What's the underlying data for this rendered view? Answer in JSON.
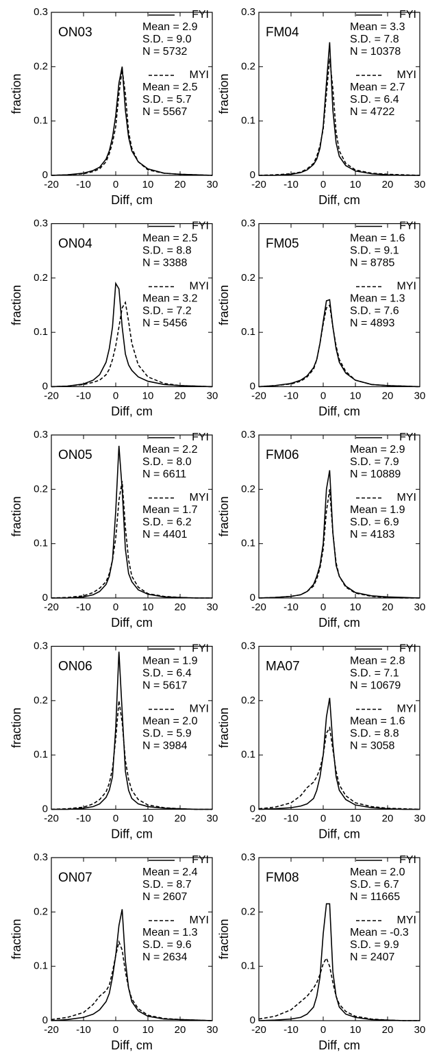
{
  "chart_data": [
    {
      "type": "line",
      "title": "ON03",
      "xlabel": "Diff, cm",
      "ylabel": "fraction",
      "x": [
        -20,
        -15,
        -10,
        -7,
        -5,
        -3,
        -2,
        -1,
        0,
        1,
        2,
        3,
        4,
        5,
        7,
        10,
        15,
        20,
        25,
        30
      ],
      "xlim": [
        -20,
        30
      ],
      "xticks": [
        -20,
        -10,
        0,
        10,
        20,
        30
      ],
      "ylim": [
        0,
        0.3
      ],
      "yticks": [
        0,
        0.1,
        0.2,
        0.3
      ],
      "series": [
        {
          "name": "FYI",
          "color": "#000000",
          "line_style": "solid",
          "stats": [
            "Mean = 2.9",
            "S.D. = 9.0",
            "N = 5732"
          ],
          "values": [
            0,
            0.001,
            0.004,
            0.009,
            0.015,
            0.03,
            0.045,
            0.07,
            0.11,
            0.17,
            0.2,
            0.12,
            0.07,
            0.045,
            0.025,
            0.012,
            0.004,
            0.002,
            0.001,
            0
          ]
        },
        {
          "name": "MYI",
          "color": "#000000",
          "line_style": "dashed",
          "stats": [
            "Mean = 2.5",
            "S.D. = 5.7",
            "N = 5567"
          ],
          "values": [
            0,
            0.001,
            0.003,
            0.007,
            0.012,
            0.025,
            0.04,
            0.06,
            0.09,
            0.15,
            0.195,
            0.15,
            0.08,
            0.05,
            0.025,
            0.01,
            0.004,
            0.002,
            0.001,
            0
          ]
        }
      ]
    },
    {
      "type": "line",
      "title": "FM04",
      "xlabel": "Diff, cm",
      "ylabel": "fraction",
      "x": [
        -20,
        -15,
        -10,
        -7,
        -5,
        -3,
        -2,
        -1,
        0,
        1,
        2,
        3,
        4,
        5,
        7,
        10,
        15,
        20,
        25,
        30
      ],
      "xlim": [
        -20,
        30
      ],
      "xticks": [
        -20,
        -10,
        0,
        10,
        20,
        30
      ],
      "ylim": [
        0,
        0.3
      ],
      "yticks": [
        0,
        0.1,
        0.2,
        0.3
      ],
      "series": [
        {
          "name": "FYI",
          "color": "#000000",
          "line_style": "solid",
          "stats": [
            "Mean = 3.3",
            "S.D. = 7.8",
            "N = 10378"
          ],
          "values": [
            0,
            0,
            0.002,
            0.005,
            0.01,
            0.02,
            0.03,
            0.05,
            0.09,
            0.17,
            0.245,
            0.12,
            0.06,
            0.035,
            0.018,
            0.008,
            0.003,
            0.001,
            0,
            0
          ]
        },
        {
          "name": "MYI",
          "color": "#000000",
          "line_style": "dashed",
          "stats": [
            "Mean = 2.7",
            "S.D. = 6.4",
            "N = 4722"
          ],
          "values": [
            0,
            0.001,
            0.003,
            0.006,
            0.012,
            0.022,
            0.035,
            0.055,
            0.085,
            0.15,
            0.215,
            0.16,
            0.08,
            0.045,
            0.022,
            0.01,
            0.004,
            0.002,
            0.001,
            0
          ]
        }
      ]
    },
    {
      "type": "line",
      "title": "ON04",
      "xlabel": "Diff, cm",
      "ylabel": "fraction",
      "x": [
        -20,
        -15,
        -10,
        -7,
        -5,
        -3,
        -2,
        -1,
        0,
        1,
        2,
        3,
        4,
        5,
        7,
        10,
        15,
        20,
        25,
        30
      ],
      "xlim": [
        -20,
        30
      ],
      "xticks": [
        -20,
        -10,
        0,
        10,
        20,
        30
      ],
      "ylim": [
        0,
        0.3
      ],
      "yticks": [
        0,
        0.1,
        0.2,
        0.3
      ],
      "series": [
        {
          "name": "FYI",
          "color": "#000000",
          "line_style": "solid",
          "stats": [
            "Mean = 2.5",
            "S.D. = 8.8",
            "N = 3388"
          ],
          "values": [
            0,
            0.001,
            0.005,
            0.012,
            0.022,
            0.045,
            0.07,
            0.11,
            0.19,
            0.18,
            0.11,
            0.06,
            0.04,
            0.03,
            0.018,
            0.01,
            0.004,
            0.002,
            0.001,
            0
          ]
        },
        {
          "name": "MYI",
          "color": "#000000",
          "line_style": "dashed",
          "stats": [
            "Mean = 3.2",
            "S.D. = 7.2",
            "N = 5456"
          ],
          "values": [
            0,
            0.001,
            0.004,
            0.008,
            0.012,
            0.022,
            0.032,
            0.05,
            0.075,
            0.11,
            0.145,
            0.155,
            0.12,
            0.08,
            0.04,
            0.018,
            0.006,
            0.002,
            0.001,
            0
          ]
        }
      ]
    },
    {
      "type": "line",
      "title": "FM05",
      "xlabel": "Diff, cm",
      "ylabel": "fraction",
      "x": [
        -20,
        -15,
        -10,
        -7,
        -5,
        -3,
        -2,
        -1,
        0,
        1,
        2,
        3,
        4,
        5,
        7,
        10,
        15,
        20,
        25,
        30
      ],
      "xlim": [
        -20,
        30
      ],
      "xticks": [
        -20,
        -10,
        0,
        10,
        20,
        30
      ],
      "ylim": [
        0,
        0.3
      ],
      "yticks": [
        0,
        0.1,
        0.2,
        0.3
      ],
      "series": [
        {
          "name": "FYI",
          "color": "#000000",
          "line_style": "solid",
          "stats": [
            "Mean = 1.6",
            "S.D. = 9.1",
            "N = 8785"
          ],
          "values": [
            0,
            0.002,
            0.006,
            0.012,
            0.02,
            0.035,
            0.05,
            0.08,
            0.12,
            0.158,
            0.16,
            0.11,
            0.07,
            0.045,
            0.025,
            0.012,
            0.004,
            0.002,
            0.001,
            0
          ]
        },
        {
          "name": "MYI",
          "color": "#000000",
          "line_style": "dashed",
          "stats": [
            "Mean = 1.3",
            "S.D. = 7.6",
            "N = 4893"
          ],
          "values": [
            0,
            0.002,
            0.005,
            0.01,
            0.018,
            0.032,
            0.05,
            0.08,
            0.115,
            0.145,
            0.15,
            0.11,
            0.075,
            0.05,
            0.028,
            0.012,
            0.004,
            0.002,
            0.001,
            0
          ]
        }
      ]
    },
    {
      "type": "line",
      "title": "ON05",
      "xlabel": "Diff, cm",
      "ylabel": "fraction",
      "x": [
        -20,
        -15,
        -10,
        -7,
        -5,
        -3,
        -2,
        -1,
        0,
        1,
        2,
        3,
        4,
        5,
        7,
        10,
        15,
        20,
        25,
        30
      ],
      "xlim": [
        -20,
        30
      ],
      "xticks": [
        -20,
        -10,
        0,
        10,
        20,
        30
      ],
      "ylim": [
        0,
        0.3
      ],
      "yticks": [
        0,
        0.1,
        0.2,
        0.3
      ],
      "series": [
        {
          "name": "FYI",
          "color": "#000000",
          "line_style": "solid",
          "stats": [
            "Mean = 2.2",
            "S.D. = 8.0",
            "N = 6611"
          ],
          "values": [
            0,
            0,
            0.002,
            0.006,
            0.012,
            0.025,
            0.04,
            0.07,
            0.16,
            0.28,
            0.2,
            0.09,
            0.045,
            0.03,
            0.015,
            0.007,
            0.002,
            0.001,
            0,
            0
          ]
        },
        {
          "name": "MYI",
          "color": "#000000",
          "line_style": "dashed",
          "stats": [
            "Mean = 1.7",
            "S.D. = 6.2",
            "N = 4401"
          ],
          "values": [
            0,
            0.001,
            0.004,
            0.01,
            0.018,
            0.03,
            0.045,
            0.07,
            0.11,
            0.18,
            0.215,
            0.13,
            0.07,
            0.04,
            0.02,
            0.008,
            0.003,
            0.001,
            0,
            0
          ]
        }
      ]
    },
    {
      "type": "line",
      "title": "FM06",
      "xlabel": "Diff, cm",
      "ylabel": "fraction",
      "x": [
        -20,
        -15,
        -10,
        -7,
        -5,
        -3,
        -2,
        -1,
        0,
        1,
        2,
        3,
        4,
        5,
        7,
        10,
        15,
        20,
        25,
        30
      ],
      "xlim": [
        -20,
        30
      ],
      "xticks": [
        -20,
        -10,
        0,
        10,
        20,
        30
      ],
      "ylim": [
        0,
        0.3
      ],
      "yticks": [
        0,
        0.1,
        0.2,
        0.3
      ],
      "series": [
        {
          "name": "FYI",
          "color": "#000000",
          "line_style": "solid",
          "stats": [
            "Mean = 2.9",
            "S.D. = 7.9",
            "N = 10889"
          ],
          "values": [
            0,
            0.001,
            0.003,
            0.006,
            0.012,
            0.025,
            0.04,
            0.06,
            0.1,
            0.2,
            0.235,
            0.12,
            0.06,
            0.04,
            0.022,
            0.01,
            0.004,
            0.002,
            0.001,
            0
          ]
        },
        {
          "name": "MYI",
          "color": "#000000",
          "line_style": "dashed",
          "stats": [
            "Mean = 1.9",
            "S.D. = 6.9",
            "N = 4183"
          ],
          "values": [
            0,
            0.001,
            0.003,
            0.006,
            0.012,
            0.022,
            0.035,
            0.055,
            0.09,
            0.16,
            0.2,
            0.12,
            0.065,
            0.04,
            0.02,
            0.009,
            0.003,
            0.001,
            0,
            0
          ]
        }
      ]
    },
    {
      "type": "line",
      "title": "ON06",
      "xlabel": "Diff, cm",
      "ylabel": "fraction",
      "x": [
        -20,
        -15,
        -10,
        -7,
        -5,
        -3,
        -2,
        -1,
        0,
        1,
        2,
        3,
        4,
        5,
        7,
        10,
        15,
        20,
        25,
        30
      ],
      "xlim": [
        -20,
        30
      ],
      "xticks": [
        -20,
        -10,
        0,
        10,
        20,
        30
      ],
      "ylim": [
        0,
        0.3
      ],
      "yticks": [
        0,
        0.1,
        0.2,
        0.3
      ],
      "series": [
        {
          "name": "FYI",
          "color": "#000000",
          "line_style": "solid",
          "stats": [
            "Mean = 1.9",
            "S.D. = 6.4",
            "N = 5617"
          ],
          "values": [
            0,
            0,
            0.002,
            0.005,
            0.01,
            0.022,
            0.035,
            0.06,
            0.15,
            0.29,
            0.18,
            0.07,
            0.035,
            0.02,
            0.01,
            0.005,
            0.002,
            0.001,
            0,
            0
          ]
        },
        {
          "name": "MYI",
          "color": "#000000",
          "line_style": "dashed",
          "stats": [
            "Mean = 2.0",
            "S.D. = 5.9",
            "N = 3984"
          ],
          "values": [
            0,
            0.001,
            0.004,
            0.01,
            0.018,
            0.032,
            0.048,
            0.075,
            0.13,
            0.2,
            0.16,
            0.09,
            0.055,
            0.035,
            0.018,
            0.008,
            0.003,
            0.001,
            0,
            0
          ]
        }
      ]
    },
    {
      "type": "line",
      "title": "MA07",
      "xlabel": "Diff, cm",
      "ylabel": "fraction",
      "x": [
        -20,
        -15,
        -10,
        -7,
        -5,
        -3,
        -2,
        -1,
        0,
        1,
        2,
        3,
        4,
        5,
        7,
        10,
        15,
        20,
        25,
        30
      ],
      "xlim": [
        -20,
        30
      ],
      "xticks": [
        -20,
        -10,
        0,
        10,
        20,
        30
      ],
      "ylim": [
        0,
        0.3
      ],
      "yticks": [
        0,
        0.1,
        0.2,
        0.3
      ],
      "series": [
        {
          "name": "FYI",
          "color": "#000000",
          "line_style": "solid",
          "stats": [
            "Mean = 2.8",
            "S.D. = 7.1",
            "N = 10679"
          ],
          "values": [
            0,
            0.001,
            0.003,
            0.006,
            0.01,
            0.02,
            0.035,
            0.06,
            0.1,
            0.17,
            0.205,
            0.12,
            0.06,
            0.035,
            0.018,
            0.008,
            0.003,
            0.001,
            0,
            0
          ]
        },
        {
          "name": "MYI",
          "color": "#000000",
          "line_style": "dashed",
          "stats": [
            "Mean = 1.6",
            "S.D. = 8.8",
            "N = 3058"
          ],
          "values": [
            0.001,
            0.004,
            0.012,
            0.025,
            0.04,
            0.05,
            0.06,
            0.075,
            0.1,
            0.14,
            0.15,
            0.11,
            0.07,
            0.045,
            0.025,
            0.012,
            0.005,
            0.002,
            0.001,
            0
          ]
        }
      ]
    },
    {
      "type": "line",
      "title": "ON07",
      "xlabel": "Diff, cm",
      "ylabel": "fraction",
      "x": [
        -20,
        -15,
        -10,
        -7,
        -5,
        -3,
        -2,
        -1,
        0,
        1,
        2,
        3,
        4,
        5,
        7,
        10,
        15,
        20,
        25,
        30
      ],
      "xlim": [
        -20,
        30
      ],
      "xticks": [
        -20,
        -10,
        0,
        10,
        20,
        30
      ],
      "ylim": [
        0,
        0.3
      ],
      "yticks": [
        0,
        0.1,
        0.2,
        0.3
      ],
      "series": [
        {
          "name": "FYI",
          "color": "#000000",
          "line_style": "solid",
          "stats": [
            "Mean = 2.4",
            "S.D. = 8.7",
            "N = 2607"
          ],
          "values": [
            0,
            0.002,
            0.006,
            0.012,
            0.02,
            0.035,
            0.05,
            0.08,
            0.12,
            0.175,
            0.205,
            0.11,
            0.06,
            0.035,
            0.018,
            0.008,
            0.003,
            0.002,
            0.001,
            0
          ]
        },
        {
          "name": "MYI",
          "color": "#000000",
          "line_style": "dashed",
          "stats": [
            "Mean = 1.3",
            "S.D. = 9.6",
            "N = 2634"
          ],
          "values": [
            0.002,
            0.006,
            0.015,
            0.03,
            0.045,
            0.055,
            0.065,
            0.09,
            0.12,
            0.145,
            0.13,
            0.09,
            0.06,
            0.04,
            0.022,
            0.01,
            0.004,
            0.002,
            0.001,
            0
          ]
        }
      ]
    },
    {
      "type": "line",
      "title": "FM08",
      "xlabel": "Diff, cm",
      "ylabel": "fraction",
      "x": [
        -20,
        -15,
        -10,
        -7,
        -5,
        -3,
        -2,
        -1,
        0,
        1,
        2,
        3,
        4,
        5,
        7,
        10,
        15,
        20,
        25,
        30
      ],
      "xlim": [
        -20,
        30
      ],
      "xticks": [
        -20,
        -10,
        0,
        10,
        20,
        30
      ],
      "ylim": [
        0,
        0.3
      ],
      "yticks": [
        0,
        0.1,
        0.2,
        0.3
      ],
      "series": [
        {
          "name": "FYI",
          "color": "#000000",
          "line_style": "solid",
          "stats": [
            "Mean = 2.0",
            "S.D. = 6.7",
            "N = 11665"
          ],
          "values": [
            0,
            0.001,
            0.003,
            0.006,
            0.012,
            0.025,
            0.045,
            0.08,
            0.16,
            0.215,
            0.215,
            0.09,
            0.045,
            0.025,
            0.012,
            0.006,
            0.002,
            0.001,
            0,
            0
          ]
        },
        {
          "name": "MYI",
          "color": "#000000",
          "line_style": "dashed",
          "stats": [
            "Mean = -0.3",
            "S.D. = 9.9",
            "N = 2407"
          ],
          "values": [
            0.003,
            0.008,
            0.02,
            0.035,
            0.045,
            0.06,
            0.07,
            0.085,
            0.105,
            0.115,
            0.1,
            0.07,
            0.045,
            0.03,
            0.017,
            0.008,
            0.003,
            0.001,
            0,
            0
          ]
        }
      ]
    }
  ]
}
